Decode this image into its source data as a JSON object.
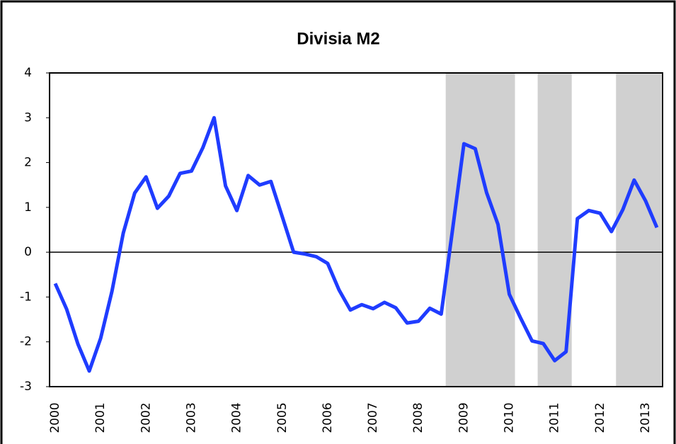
{
  "chart_data": {
    "type": "line",
    "title": "Divisia M2",
    "categories": [
      "2000",
      null,
      null,
      null,
      "2001",
      null,
      null,
      null,
      "2002",
      null,
      null,
      null,
      "2003",
      null,
      null,
      null,
      "2004",
      null,
      null,
      null,
      "2005",
      null,
      null,
      null,
      "2006",
      null,
      null,
      null,
      "2007",
      null,
      null,
      null,
      "2008",
      null,
      null,
      null,
      "2009",
      null,
      null,
      null,
      "2010",
      null,
      null,
      null,
      "2011",
      null,
      null,
      null,
      "2012",
      null,
      null,
      null,
      "2013",
      null
    ],
    "series": [
      {
        "name": "Divisia M2",
        "color": "#1f3cff",
        "values": [
          -0.7,
          -1.27,
          -2.05,
          -2.65,
          -1.92,
          -0.87,
          0.43,
          1.32,
          1.68,
          0.98,
          1.25,
          1.76,
          1.81,
          2.33,
          3.0,
          1.48,
          0.93,
          1.71,
          1.5,
          1.58,
          0.79,
          0.0,
          -0.04,
          -0.1,
          -0.25,
          -0.84,
          -1.29,
          -1.17,
          -1.26,
          -1.12,
          -1.24,
          -1.58,
          -1.54,
          -1.25,
          -1.38,
          0.5,
          2.42,
          2.31,
          1.33,
          0.62,
          -0.94,
          -1.47,
          -1.98,
          -2.04,
          -2.42,
          -2.22,
          0.75,
          0.93,
          0.87,
          0.46,
          0.95,
          1.61,
          1.15,
          0.55
        ]
      }
    ],
    "shaded_ranges": [
      [
        34.9,
        41.0
      ],
      [
        43.0,
        46.0
      ],
      [
        49.9,
        53.9
      ]
    ],
    "shade_color": "#d0d0d0",
    "ylim": [
      -3,
      4
    ],
    "yticks": [
      -3,
      -2,
      -1,
      0,
      1,
      2,
      3,
      4
    ]
  }
}
